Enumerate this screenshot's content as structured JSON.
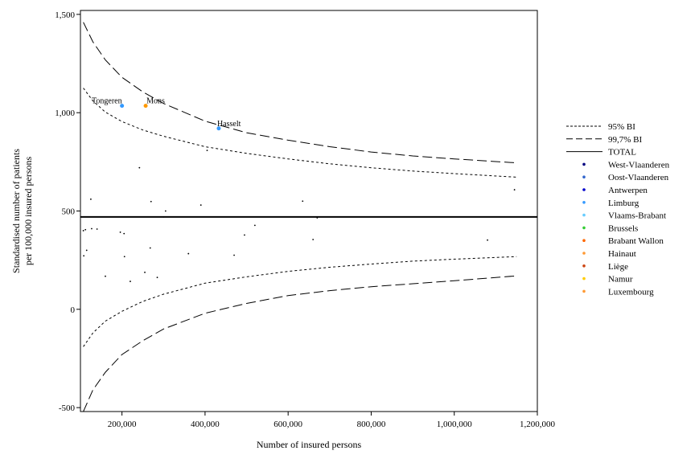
{
  "chart_data": {
    "type": "scatter",
    "xlabel": "Number of insured persons",
    "ylabel": [
      "Standardised number of patients",
      "per 100,000 insured persons"
    ],
    "xlim": [
      100000,
      1200000
    ],
    "ylim": [
      -520,
      1520
    ],
    "x_ticks": [
      {
        "value": 200000,
        "label": "200,000"
      },
      {
        "value": 400000,
        "label": "400,000"
      },
      {
        "value": 600000,
        "label": "600,000"
      },
      {
        "value": 800000,
        "label": "800,000"
      },
      {
        "value": 1000000,
        "label": "1,000,000"
      },
      {
        "value": 1200000,
        "label": "1,200,000"
      }
    ],
    "y_ticks": [
      {
        "value": 1500,
        "label": "1,500"
      },
      {
        "value": 1000,
        "label": "1,000"
      },
      {
        "value": 500,
        "label": "500"
      },
      {
        "value": 0,
        "label": "0"
      },
      {
        "value": -500,
        "label": "-500"
      }
    ],
    "total": 470,
    "bands": {
      "ci95_upper": [
        [
          107000,
          1125
        ],
        [
          130000,
          1060
        ],
        [
          160000,
          1003
        ],
        [
          200000,
          955
        ],
        [
          250000,
          912
        ],
        [
          300000,
          880
        ],
        [
          400000,
          827
        ],
        [
          500000,
          793
        ],
        [
          600000,
          765
        ],
        [
          700000,
          740
        ],
        [
          800000,
          720
        ],
        [
          900000,
          703
        ],
        [
          1000000,
          690
        ],
        [
          1150000,
          672
        ]
      ],
      "ci95_lower": [
        [
          107000,
          -190
        ],
        [
          130000,
          -120
        ],
        [
          160000,
          -60
        ],
        [
          200000,
          -10
        ],
        [
          250000,
          40
        ],
        [
          300000,
          77
        ],
        [
          400000,
          133
        ],
        [
          500000,
          165
        ],
        [
          600000,
          193
        ],
        [
          700000,
          214
        ],
        [
          800000,
          230
        ],
        [
          900000,
          245
        ],
        [
          1000000,
          255
        ],
        [
          1150000,
          268
        ]
      ],
      "ci997_upper": [
        [
          107000,
          1460
        ],
        [
          130000,
          1360
        ],
        [
          160000,
          1268
        ],
        [
          200000,
          1180
        ],
        [
          250000,
          1106
        ],
        [
          300000,
          1047
        ],
        [
          400000,
          957
        ],
        [
          500000,
          898
        ],
        [
          600000,
          860
        ],
        [
          700000,
          827
        ],
        [
          800000,
          800
        ],
        [
          900000,
          780
        ],
        [
          1000000,
          765
        ],
        [
          1150000,
          745
        ]
      ],
      "ci997_lower": [
        [
          107000,
          -520
        ],
        [
          130000,
          -410
        ],
        [
          160000,
          -320
        ],
        [
          200000,
          -230
        ],
        [
          250000,
          -160
        ],
        [
          300000,
          -100
        ],
        [
          400000,
          -20
        ],
        [
          500000,
          30
        ],
        [
          600000,
          70
        ],
        [
          700000,
          95
        ],
        [
          800000,
          115
        ],
        [
          900000,
          130
        ],
        [
          1000000,
          145
        ],
        [
          1150000,
          170
        ]
      ]
    },
    "points": [
      {
        "x": 200000,
        "y": 1035,
        "label": "Tongeren",
        "color": "#3399ff"
      },
      {
        "x": 257000,
        "y": 1035,
        "label": "Mons",
        "color": "#ff9900"
      },
      {
        "x": 433000,
        "y": 920,
        "label": "Hasselt",
        "color": "#3399ff"
      },
      {
        "x": 242000,
        "y": 720
      },
      {
        "x": 405000,
        "y": 808
      },
      {
        "x": 125000,
        "y": 560
      },
      {
        "x": 270000,
        "y": 548
      },
      {
        "x": 390000,
        "y": 530
      },
      {
        "x": 635000,
        "y": 550
      },
      {
        "x": 1145000,
        "y": 608
      },
      {
        "x": 305000,
        "y": 500
      },
      {
        "x": 300000,
        "y": 470
      },
      {
        "x": 670000,
        "y": 465
      },
      {
        "x": 520000,
        "y": 427
      },
      {
        "x": 107000,
        "y": 400
      },
      {
        "x": 112000,
        "y": 405
      },
      {
        "x": 127000,
        "y": 410
      },
      {
        "x": 140000,
        "y": 408
      },
      {
        "x": 196000,
        "y": 392
      },
      {
        "x": 205000,
        "y": 385
      },
      {
        "x": 495000,
        "y": 378
      },
      {
        "x": 660000,
        "y": 355
      },
      {
        "x": 1080000,
        "y": 352
      },
      {
        "x": 115000,
        "y": 300
      },
      {
        "x": 268000,
        "y": 312
      },
      {
        "x": 108000,
        "y": 272
      },
      {
        "x": 206000,
        "y": 268
      },
      {
        "x": 360000,
        "y": 283
      },
      {
        "x": 470000,
        "y": 275
      },
      {
        "x": 255000,
        "y": 188
      },
      {
        "x": 160000,
        "y": 168
      },
      {
        "x": 285000,
        "y": 162
      },
      {
        "x": 220000,
        "y": 142
      }
    ],
    "legend": {
      "position": "right",
      "entries": [
        {
          "label": "95% BI",
          "kind": "line",
          "style": "dotted"
        },
        {
          "label": "99,7% BI",
          "kind": "line",
          "style": "dashed"
        },
        {
          "label": "TOTAL",
          "kind": "line",
          "style": "solid"
        },
        {
          "label": "West-Vlaanderen",
          "kind": "dot",
          "color": "#000080"
        },
        {
          "label": "Oost-Vlaanderen",
          "kind": "dot",
          "color": "#3366cc"
        },
        {
          "label": "Antwerpen",
          "kind": "dot",
          "color": "#0000cc"
        },
        {
          "label": "Limburg",
          "kind": "dot",
          "color": "#3399ff"
        },
        {
          "label": "Vlaams-Brabant",
          "kind": "dot",
          "color": "#66ccff"
        },
        {
          "label": "Brussels",
          "kind": "dot",
          "color": "#33cc33"
        },
        {
          "label": "Brabant Wallon",
          "kind": "dot",
          "color": "#ff6600"
        },
        {
          "label": "Hainaut",
          "kind": "dot",
          "color": "#ff9933"
        },
        {
          "label": "Liège",
          "kind": "dot",
          "color": "#cc4411"
        },
        {
          "label": "Namur",
          "kind": "dot",
          "color": "#ffcc00"
        },
        {
          "label": "Luxembourg",
          "kind": "dot",
          "color": "#ff9933"
        }
      ]
    }
  }
}
